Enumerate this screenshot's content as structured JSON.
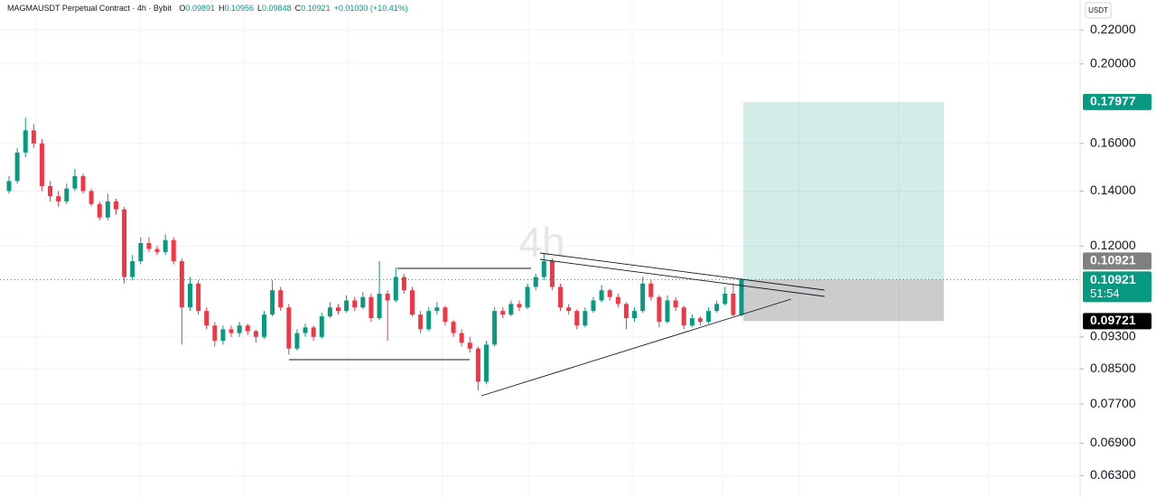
{
  "chart_data": {
    "type": "candlestick",
    "header": {
      "symbol": "MAGMAUSDT Perpetual Contract · 4h · Bybit",
      "ohlc": [
        {
          "label": "O",
          "value": "0.09891"
        },
        {
          "label": "H",
          "value": "0.10956"
        },
        {
          "label": "L",
          "value": "0.09848"
        },
        {
          "label": "C",
          "value": "0.10921"
        }
      ],
      "change": "+0.01030 (+10.41%)"
    },
    "watermark": "4h",
    "unit": "USDT",
    "log_scale": true,
    "grid": true,
    "up_color": "#089981",
    "down_color": "#f23645",
    "ylim": [
      0.0601,
      0.2393
    ],
    "yticks": [
      {
        "value": 0.22,
        "label": "0.22000"
      },
      {
        "value": 0.2,
        "label": "0.20000"
      },
      {
        "value": 0.16,
        "label": "0.16000"
      },
      {
        "value": 0.14,
        "label": "0.14000"
      },
      {
        "value": 0.12,
        "label": "0.12000"
      },
      {
        "value": 0.093,
        "label": "0.09300"
      },
      {
        "value": 0.085,
        "label": "0.08500"
      },
      {
        "value": 0.077,
        "label": "0.07700"
      },
      {
        "value": 0.069,
        "label": "0.06900"
      },
      {
        "value": 0.063,
        "label": "0.06300"
      }
    ],
    "series": {
      "open": [
        0.14,
        0.144,
        0.156,
        0.166,
        0.16,
        0.142,
        0.138,
        0.136,
        0.141,
        0.146,
        0.14,
        0.135,
        0.13,
        0.136,
        0.133,
        0.11,
        0.115,
        0.121,
        0.119,
        0.118,
        0.122,
        0.115,
        0.101,
        0.108,
        0.1,
        0.096,
        0.092,
        0.095,
        0.094,
        0.096,
        0.0945,
        0.093,
        0.099,
        0.106,
        0.101,
        0.09,
        0.094,
        0.0955,
        0.093,
        0.0985,
        0.101,
        0.1,
        0.103,
        0.101,
        0.104,
        0.098,
        0.105,
        0.103,
        0.11,
        0.106,
        0.099,
        0.095,
        0.1,
        0.101,
        0.097,
        0.094,
        0.0915,
        0.09,
        0.082,
        0.091,
        0.1,
        0.099,
        0.102,
        0.101,
        0.107,
        0.11,
        0.115,
        0.107,
        0.101,
        0.1,
        0.096,
        0.1,
        0.103,
        0.106,
        0.104,
        0.102,
        0.098,
        0.1,
        0.108,
        0.104,
        0.097,
        0.103,
        0.101,
        0.096,
        0.098,
        0.097,
        0.1,
        0.102,
        0.105,
        0.09891
      ],
      "high": [
        0.146,
        0.158,
        0.172,
        0.169,
        0.162,
        0.144,
        0.14,
        0.143,
        0.149,
        0.147,
        0.141,
        0.136,
        0.139,
        0.137,
        0.134,
        0.117,
        0.123,
        0.123,
        0.12,
        0.124,
        0.123,
        0.116,
        0.11,
        0.109,
        0.101,
        0.097,
        0.096,
        0.096,
        0.097,
        0.0965,
        0.095,
        0.1,
        0.109,
        0.107,
        0.102,
        0.095,
        0.0965,
        0.096,
        0.0995,
        0.1025,
        0.102,
        0.1045,
        0.104,
        0.1055,
        0.105,
        0.115,
        0.106,
        0.113,
        0.111,
        0.107,
        0.1,
        0.101,
        0.1025,
        0.1015,
        0.0975,
        0.095,
        0.093,
        0.0905,
        0.092,
        0.101,
        0.101,
        0.103,
        0.103,
        0.108,
        0.111,
        0.1175,
        0.116,
        0.108,
        0.102,
        0.1005,
        0.101,
        0.104,
        0.1075,
        0.1065,
        0.105,
        0.1025,
        0.101,
        0.11,
        0.109,
        0.1045,
        0.1045,
        0.104,
        0.1015,
        0.099,
        0.0985,
        0.101,
        0.103,
        0.107,
        0.108,
        0.10956
      ],
      "low": [
        0.139,
        0.143,
        0.154,
        0.158,
        0.14,
        0.136,
        0.134,
        0.135,
        0.14,
        0.139,
        0.134,
        0.129,
        0.129,
        0.131,
        0.108,
        0.109,
        0.114,
        0.118,
        0.117,
        0.117,
        0.114,
        0.091,
        0.1,
        0.099,
        0.095,
        0.0905,
        0.091,
        0.093,
        0.093,
        0.0935,
        0.0915,
        0.0925,
        0.0985,
        0.1,
        0.0885,
        0.0895,
        0.093,
        0.092,
        0.0925,
        0.098,
        0.099,
        0.0995,
        0.1,
        0.1005,
        0.097,
        0.0975,
        0.092,
        0.1025,
        0.105,
        0.0985,
        0.094,
        0.0945,
        0.099,
        0.096,
        0.093,
        0.0905,
        0.089,
        0.08,
        0.0815,
        0.0905,
        0.098,
        0.0985,
        0.1,
        0.1005,
        0.106,
        0.109,
        0.106,
        0.1,
        0.099,
        0.095,
        0.0955,
        0.0995,
        0.1025,
        0.103,
        0.101,
        0.095,
        0.097,
        0.0995,
        0.103,
        0.0955,
        0.0965,
        0.1,
        0.095,
        0.0955,
        0.096,
        0.0965,
        0.0995,
        0.1015,
        0.0985,
        0.09848
      ],
      "close": [
        0.144,
        0.156,
        0.166,
        0.16,
        0.142,
        0.138,
        0.136,
        0.141,
        0.146,
        0.14,
        0.135,
        0.13,
        0.136,
        0.133,
        0.11,
        0.115,
        0.121,
        0.119,
        0.118,
        0.122,
        0.115,
        0.101,
        0.108,
        0.1,
        0.096,
        0.092,
        0.095,
        0.094,
        0.096,
        0.0945,
        0.093,
        0.099,
        0.106,
        0.101,
        0.09,
        0.094,
        0.0955,
        0.093,
        0.0985,
        0.101,
        0.1,
        0.103,
        0.101,
        0.104,
        0.098,
        0.105,
        0.103,
        0.11,
        0.106,
        0.099,
        0.095,
        0.1,
        0.101,
        0.097,
        0.094,
        0.0915,
        0.09,
        0.082,
        0.091,
        0.1,
        0.099,
        0.102,
        0.101,
        0.107,
        0.11,
        0.115,
        0.107,
        0.101,
        0.1,
        0.096,
        0.1,
        0.103,
        0.106,
        0.104,
        0.102,
        0.098,
        0.1,
        0.108,
        0.104,
        0.097,
        0.103,
        0.101,
        0.096,
        0.098,
        0.097,
        0.1,
        0.102,
        0.105,
        0.0989,
        0.10921
      ]
    },
    "position": {
      "target": 0.17977,
      "entry": 0.10921,
      "stop": 0.09721,
      "countdown": "51:54"
    }
  }
}
